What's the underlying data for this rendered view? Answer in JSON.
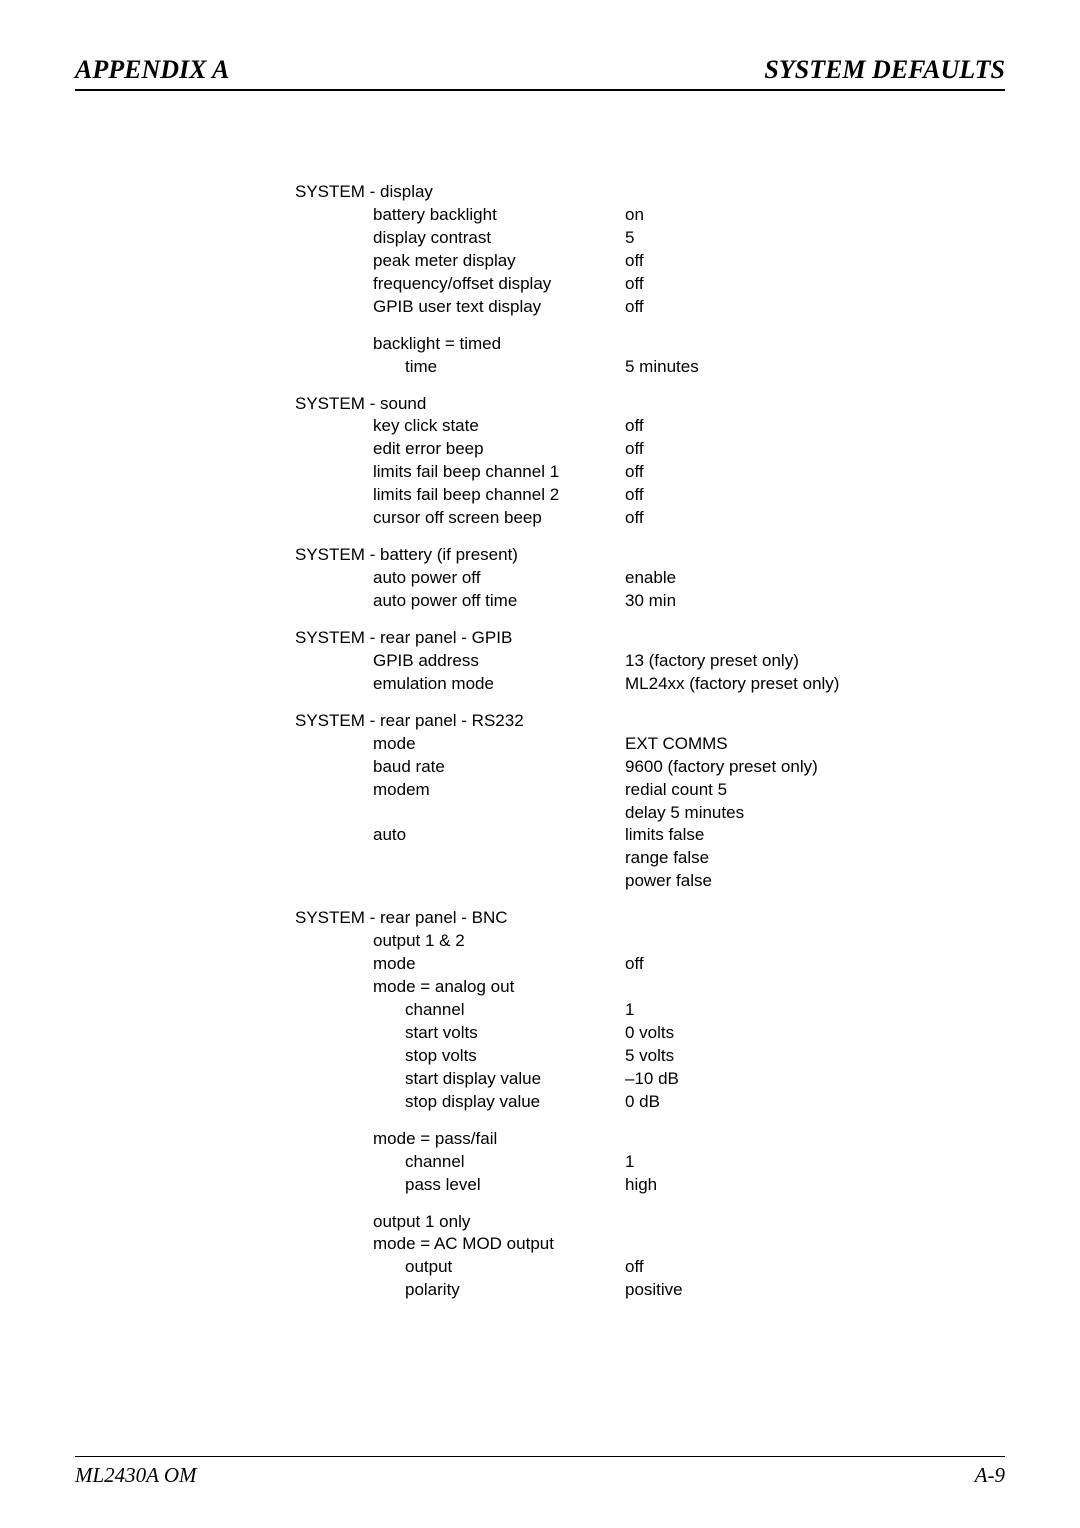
{
  "header": {
    "left": "APPENDIX A",
    "right": "SYSTEM DEFAULTS"
  },
  "footer": {
    "left": "ML2430A OM",
    "right": "A-9"
  },
  "sections": [
    {
      "title": "SYSTEM - display",
      "rows": [
        {
          "indent": 1,
          "label": "battery backlight",
          "value": "on"
        },
        {
          "indent": 1,
          "label": "display contrast",
          "value": "5"
        },
        {
          "indent": 1,
          "label": "peak meter display",
          "value": "off"
        },
        {
          "indent": 1,
          "label": "frequency/offset display",
          "value": "off"
        },
        {
          "indent": 1,
          "label": "GPIB user text display",
          "value": "off"
        }
      ]
    },
    {
      "title": "",
      "rows": [
        {
          "indent": 1,
          "label": "backlight = timed",
          "value": ""
        },
        {
          "indent": 2,
          "label": "time",
          "value": "5 minutes"
        }
      ]
    },
    {
      "title": "SYSTEM - sound",
      "rows": [
        {
          "indent": 1,
          "label": "key click state",
          "value": "off"
        },
        {
          "indent": 1,
          "label": "edit error beep",
          "value": "off"
        },
        {
          "indent": 1,
          "label": "limits fail beep channel 1",
          "value": "off"
        },
        {
          "indent": 1,
          "label": "limits fail beep channel 2",
          "value": "off"
        },
        {
          "indent": 1,
          "label": "cursor off screen beep",
          "value": "off"
        }
      ]
    },
    {
      "title": "SYSTEM - battery (if present)",
      "rows": [
        {
          "indent": 1,
          "label": "auto power off",
          "value": "enable"
        },
        {
          "indent": 1,
          "label": "auto power off time",
          "value": "30 min"
        }
      ]
    },
    {
      "title": "SYSTEM - rear panel - GPIB",
      "rows": [
        {
          "indent": 1,
          "label": "GPIB address",
          "value": "13 (factory preset only)"
        },
        {
          "indent": 1,
          "label": "emulation mode",
          "value": "ML24xx (factory preset only)"
        }
      ]
    },
    {
      "title": "SYSTEM - rear panel - RS232",
      "rows": [
        {
          "indent": 1,
          "label": "mode",
          "value": "EXT COMMS"
        },
        {
          "indent": 1,
          "label": "baud rate",
          "value": "9600 (factory preset only)"
        },
        {
          "indent": 1,
          "label": "modem",
          "value": "redial count 5"
        },
        {
          "indent": 1,
          "label": "",
          "value": "delay 5 minutes"
        },
        {
          "indent": 1,
          "label": "auto",
          "value": "limits false"
        },
        {
          "indent": 1,
          "label": "",
          "value": "range false"
        },
        {
          "indent": 1,
          "label": "",
          "value": "power false"
        }
      ]
    },
    {
      "title": "SYSTEM - rear panel - BNC",
      "rows": [
        {
          "indent": 1,
          "label": "output 1 & 2",
          "value": ""
        },
        {
          "indent": 1,
          "label": "mode",
          "value": "off"
        },
        {
          "indent": 1,
          "label": "mode = analog out",
          "value": ""
        },
        {
          "indent": 2,
          "label": "channel",
          "value": "1"
        },
        {
          "indent": 2,
          "label": "start volts",
          "value": "0 volts"
        },
        {
          "indent": 2,
          "label": "stop volts",
          "value": "5 volts"
        },
        {
          "indent": 2,
          "label": "start display value",
          "value": "–10 dB"
        },
        {
          "indent": 2,
          "label": "stop display value",
          "value": "0 dB"
        }
      ]
    },
    {
      "title": "",
      "rows": [
        {
          "indent": 1,
          "label": "mode = pass/fail",
          "value": ""
        },
        {
          "indent": 2,
          "label": "channel",
          "value": "1"
        },
        {
          "indent": 2,
          "label": "pass level",
          "value": "high"
        }
      ]
    },
    {
      "title": "",
      "rows": [
        {
          "indent": 1,
          "label": "output 1 only",
          "value": ""
        },
        {
          "indent": 1,
          "label": "mode = AC MOD output",
          "value": ""
        },
        {
          "indent": 2,
          "label": "output",
          "value": "off"
        },
        {
          "indent": 2,
          "label": "polarity",
          "value": "positive"
        }
      ]
    }
  ]
}
